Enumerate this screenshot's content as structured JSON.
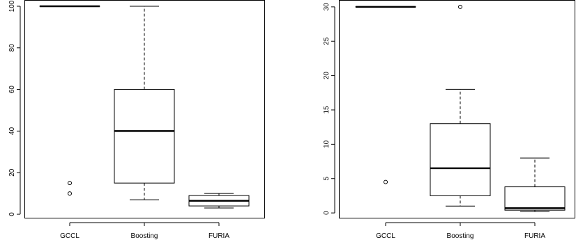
{
  "chart_data": [
    {
      "type": "boxplot",
      "categories": [
        "GCCL",
        "Boosting",
        "FURIA"
      ],
      "ylim": [
        -2,
        103
      ],
      "yticks": [
        0,
        20,
        40,
        60,
        80,
        100
      ],
      "ytick_labels": [
        "0",
        "20",
        "40",
        "60",
        "80",
        "100"
      ],
      "boxes": [
        {
          "category": "GCCL",
          "whisker_low": 100,
          "q1": 100,
          "median": 100,
          "q3": 100,
          "whisker_high": 100,
          "outliers": [
            10,
            15
          ]
        },
        {
          "category": "Boosting",
          "whisker_low": 7,
          "q1": 15,
          "median": 40,
          "q3": 60,
          "whisker_high": 100,
          "outliers": []
        },
        {
          "category": "FURIA",
          "whisker_low": 3,
          "q1": 4,
          "median": 6.5,
          "q3": 9,
          "whisker_high": 10,
          "outliers": []
        }
      ]
    },
    {
      "type": "boxplot",
      "categories": [
        "GCCL",
        "Boosting",
        "FURIA"
      ],
      "ylim": [
        -0.8,
        31
      ],
      "yticks": [
        0,
        5,
        10,
        15,
        20,
        25,
        30
      ],
      "ytick_labels": [
        "0",
        "5",
        "10",
        "15",
        "20",
        "25",
        "30"
      ],
      "boxes": [
        {
          "category": "GCCL",
          "whisker_low": 30,
          "q1": 30,
          "median": 30,
          "q3": 30,
          "whisker_high": 30,
          "outliers": [
            4.5
          ]
        },
        {
          "category": "Boosting",
          "whisker_low": 1,
          "q1": 2.5,
          "median": 6.5,
          "q3": 13,
          "whisker_high": 18,
          "outliers": [
            30
          ]
        },
        {
          "category": "FURIA",
          "whisker_low": 0.2,
          "q1": 0.4,
          "median": 0.7,
          "q3": 3.8,
          "whisker_high": 8,
          "outliers": []
        }
      ]
    }
  ]
}
